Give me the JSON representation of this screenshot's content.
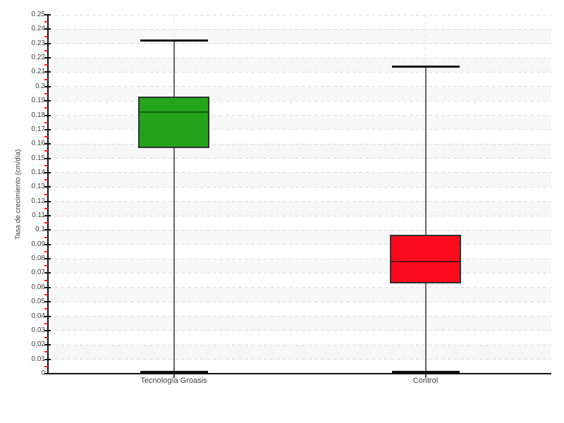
{
  "chart_data": {
    "type": "box",
    "title": "",
    "xlabel": "",
    "ylabel": "Tasa de crecimiento (cm/día)",
    "ylim": [
      0,
      0.25
    ],
    "ytick_step": 0.01,
    "yminor_step": 0.005,
    "legend": "none",
    "grid": {
      "horizontal_dashed": true,
      "vertical_dashed_at_category_centers": true,
      "alternating_bands": true
    },
    "y_tick_labels": [
      "0",
      "0.01",
      "0.02",
      "0.03",
      "0.04",
      "0.05",
      "0.06",
      "0.07",
      "0.08",
      "0.09",
      "0.1",
      "0.11",
      "0.12",
      "0.13",
      "0.14",
      "0.15",
      "0.16",
      "0.17",
      "0.18",
      "0.19",
      "0.2",
      "0.21",
      "0.22",
      "0.23",
      "0.24",
      "0.25"
    ],
    "categories": [
      "Tecnología Groasis",
      "Control"
    ],
    "series": [
      {
        "name": "Tecnología Groasis",
        "min": 0.001,
        "q1": 0.157,
        "median": 0.182,
        "q3": 0.193,
        "max": 0.232,
        "fill_color": "#23a41b",
        "median_color": "#115c0e"
      },
      {
        "name": "Control",
        "min": 0.001,
        "q1": 0.063,
        "median": 0.078,
        "q3": 0.097,
        "max": 0.214,
        "fill_color": "#fb0c1d",
        "median_color": "#5c0a14"
      }
    ],
    "colors": {
      "band": "#f7f7f7",
      "gridline": "#dcdcdc",
      "axis": "#111111",
      "major_tick": "#111111",
      "minor_tick": "#ff2015",
      "whisker": "#666666",
      "whisker_cap": "#111111",
      "box_border": "#303030",
      "tick_text": "#3e3e3e"
    }
  }
}
